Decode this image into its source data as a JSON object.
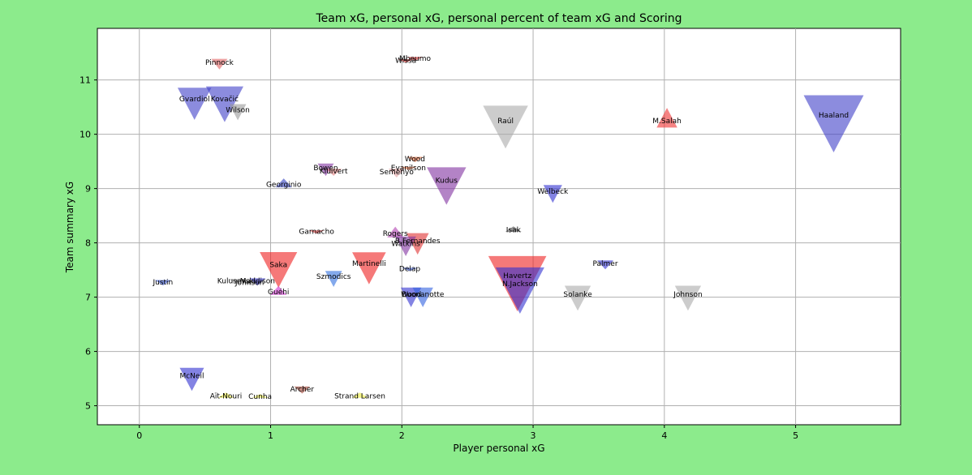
{
  "chart_data": {
    "type": "scatter",
    "title": "Team xG, personal xG, personal percent of team xG and Scoring",
    "xlabel": "Player personal xG",
    "ylabel": "Team summary xG",
    "xlim": [
      -0.32,
      5.8
    ],
    "ylim": [
      4.65,
      11.95
    ],
    "xticks": [
      0,
      1,
      2,
      3,
      4,
      5
    ],
    "yticks": [
      5,
      6,
      7,
      8,
      9,
      10,
      11
    ],
    "grid": true,
    "background": "#8ceb8c",
    "plot_background": "#ffffff",
    "marker_note": "triangle markers: direction up/down, size varies",
    "points": [
      {
        "label": "Pinnock",
        "x": 0.61,
        "y": 11.32,
        "dir": "down",
        "size": 0.3,
        "color": "#e06060"
      },
      {
        "label": "Mbeumo",
        "x": 2.1,
        "y": 11.4,
        "dir": "down",
        "size": 0.1,
        "color": "#e03030"
      },
      {
        "label": "Wissa",
        "x": 2.03,
        "y": 11.36,
        "dir": "down",
        "size": 0.05,
        "color": "#e03030"
      },
      {
        "label": "Gvardiol",
        "x": 0.42,
        "y": 10.65,
        "dir": "down",
        "size": 0.9,
        "color": "#4040c8"
      },
      {
        "label": "Kovačić",
        "x": 0.65,
        "y": 10.65,
        "dir": "down",
        "size": 1.0,
        "color": "#4040c8"
      },
      {
        "label": "Wilson",
        "x": 0.75,
        "y": 10.45,
        "dir": "down",
        "size": 0.45,
        "color": "#999999"
      },
      {
        "label": "Raúl",
        "x": 2.79,
        "y": 10.25,
        "dir": "down",
        "size": 1.2,
        "color": "#aaaaaa"
      },
      {
        "label": "Haaland",
        "x": 5.29,
        "y": 10.35,
        "dir": "down",
        "size": 1.6,
        "color": "#4040c8"
      },
      {
        "label": "M.Salah",
        "x": 4.02,
        "y": 10.25,
        "dir": "up",
        "size": 0.55,
        "color": "#ee3030"
      },
      {
        "label": "Wood",
        "x": 2.1,
        "y": 9.55,
        "dir": "down",
        "size": 0.15,
        "color": "#e06030"
      },
      {
        "label": "Evanilson",
        "x": 2.05,
        "y": 9.38,
        "dir": "down",
        "size": 0.05,
        "color": "#e06030"
      },
      {
        "label": "Bowen",
        "x": 1.42,
        "y": 9.38,
        "dir": "down",
        "size": 0.35,
        "color": "#8030a0"
      },
      {
        "label": "Kluivert",
        "x": 1.48,
        "y": 9.32,
        "dir": "down",
        "size": 0.2,
        "color": "#e08080"
      },
      {
        "label": "Semenyo",
        "x": 1.96,
        "y": 9.31,
        "dir": "down",
        "size": 0.25,
        "color": "#e0a0a0"
      },
      {
        "label": "Kudus",
        "x": 2.34,
        "y": 9.15,
        "dir": "down",
        "size": 1.05,
        "color": "#8030a0"
      },
      {
        "label": "Georginio",
        "x": 1.1,
        "y": 9.08,
        "dir": "up",
        "size": 0.25,
        "color": "#3040c0"
      },
      {
        "label": "Welbeck",
        "x": 3.15,
        "y": 8.95,
        "dir": "down",
        "size": 0.5,
        "color": "#3030d0"
      },
      {
        "label": "Garnacho",
        "x": 1.35,
        "y": 8.21,
        "dir": "down",
        "size": 0.05,
        "color": "#d03030"
      },
      {
        "label": "Isak",
        "x": 2.85,
        "y": 8.24,
        "dir": "up",
        "size": 0.15,
        "color": "#555555"
      },
      {
        "label": "Rogers",
        "x": 1.95,
        "y": 8.17,
        "dir": "up",
        "size": 0.3,
        "color": "#b040b0"
      },
      {
        "label": "B.Fernandes",
        "x": 2.12,
        "y": 8.04,
        "dir": "down",
        "size": 0.6,
        "color": "#e03030"
      },
      {
        "label": "Watkins",
        "x": 2.03,
        "y": 7.99,
        "dir": "down",
        "size": 0.55,
        "color": "#8030a0"
      },
      {
        "label": "Saka",
        "x": 1.06,
        "y": 7.6,
        "dir": "down",
        "size": 1.0,
        "color": "#ee2020"
      },
      {
        "label": "Martinelli",
        "x": 1.75,
        "y": 7.62,
        "dir": "down",
        "size": 0.9,
        "color": "#ee2020"
      },
      {
        "label": "Delap",
        "x": 2.06,
        "y": 7.52,
        "dir": "down",
        "size": 0.05,
        "color": "#3050d0"
      },
      {
        "label": "Palmer",
        "x": 3.55,
        "y": 7.62,
        "dir": "down",
        "size": 0.25,
        "color": "#3030d0"
      },
      {
        "label": "Havertz",
        "x": 2.88,
        "y": 7.4,
        "dir": "down",
        "size": 1.55,
        "color": "#ee2020"
      },
      {
        "label": "N.Jackson",
        "x": 2.9,
        "y": 7.25,
        "dir": "down",
        "size": 1.3,
        "color": "#3030d0"
      },
      {
        "label": "Szmodics",
        "x": 1.48,
        "y": 7.38,
        "dir": "down",
        "size": 0.45,
        "color": "#3070e0"
      },
      {
        "label": "Justin",
        "x": 0.18,
        "y": 7.28,
        "dir": "down",
        "size": 0.15,
        "color": "#3050d0"
      },
      {
        "label": "Kulusevski",
        "x": 0.74,
        "y": 7.3,
        "dir": "down",
        "size": 0.15,
        "color": "#aaaaaa"
      },
      {
        "label": "Johnson",
        "x": 0.84,
        "y": 7.27,
        "dir": "down",
        "size": 0.1,
        "color": "#aaaaaa"
      },
      {
        "label": "Maddison",
        "x": 0.9,
        "y": 7.3,
        "dir": "down",
        "size": 0.2,
        "color": "#3030d0"
      },
      {
        "label": "Guéhi",
        "x": 1.06,
        "y": 7.1,
        "dir": "up",
        "size": 0.25,
        "color": "#d030d0"
      },
      {
        "label": "Wood",
        "x": 2.07,
        "y": 7.05,
        "dir": "down",
        "size": 0.55,
        "color": "#3030d0"
      },
      {
        "label": "Buonanotte",
        "x": 2.16,
        "y": 7.05,
        "dir": "down",
        "size": 0.55,
        "color": "#3060e0"
      },
      {
        "label": "Solanke",
        "x": 3.34,
        "y": 7.05,
        "dir": "down",
        "size": 0.7,
        "color": "#aaaaaa"
      },
      {
        "label": "Johnson",
        "x": 4.18,
        "y": 7.05,
        "dir": "down",
        "size": 0.7,
        "color": "#aaaaaa"
      },
      {
        "label": "McNeil",
        "x": 0.4,
        "y": 5.55,
        "dir": "down",
        "size": 0.65,
        "color": "#3030d0"
      },
      {
        "label": "Archer",
        "x": 1.24,
        "y": 5.31,
        "dir": "down",
        "size": 0.2,
        "color": "#a04030"
      },
      {
        "label": "Aït-Nouri",
        "x": 0.66,
        "y": 5.18,
        "dir": "up",
        "size": 0.15,
        "color": "#eeee40"
      },
      {
        "label": "Cunha",
        "x": 0.92,
        "y": 5.17,
        "dir": "up",
        "size": 0.1,
        "color": "#eeee40"
      },
      {
        "label": "Strand Larsen",
        "x": 1.68,
        "y": 5.18,
        "dir": "up",
        "size": 0.15,
        "color": "#eeee40"
      }
    ]
  }
}
